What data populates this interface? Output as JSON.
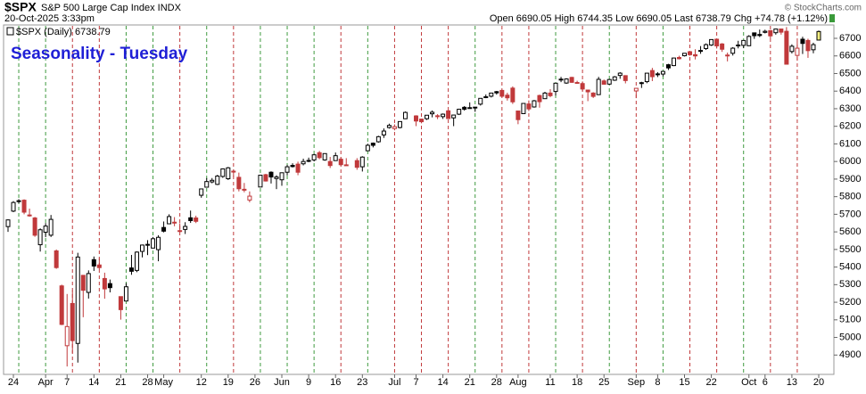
{
  "header": {
    "symbol": "$SPX",
    "name": "S&P 500 Large Cap Index INDX",
    "timestamp": "20-Oct-2025 3:33pm",
    "quote": "Open 6690.05 High 6744.35 Low 6690.05 Last 6738.79 Chg +74.78 (+1.12%)",
    "credit": "© StockCharts.com"
  },
  "chart_data": {
    "type": "candlestick",
    "title": "Seasonality - Tuesday",
    "legend": "$SPX (Daily) 6738.79",
    "categories": [
      null,
      "24",
      null,
      null,
      null,
      null,
      null,
      "Apr",
      null,
      null,
      null,
      "7",
      null,
      null,
      null,
      null,
      "14",
      null,
      null,
      null,
      null,
      "21",
      null,
      null,
      null,
      null,
      "28",
      null,
      null,
      "May",
      null,
      null,
      null,
      null,
      null,
      null,
      "12",
      null,
      null,
      null,
      null,
      "19",
      null,
      null,
      null,
      null,
      "26",
      null,
      null,
      null,
      null,
      "Jun",
      null,
      null,
      null,
      null,
      "9",
      null,
      null,
      null,
      null,
      "16",
      null,
      null,
      null,
      null,
      "23",
      null,
      null,
      null,
      null,
      null,
      "Jul",
      null,
      null,
      null,
      "7",
      null,
      null,
      null,
      null,
      "14",
      null,
      null,
      null,
      null,
      "21",
      null,
      null,
      null,
      null,
      "28",
      null,
      null,
      null,
      "Aug",
      null,
      null,
      null,
      null,
      null,
      "11",
      null,
      null,
      null,
      null,
      "18",
      null,
      null,
      null,
      null,
      "25",
      null,
      null,
      null,
      null,
      null,
      "Sep",
      null,
      null,
      null,
      "8",
      null,
      null,
      null,
      null,
      "15",
      null,
      null,
      null,
      null,
      "22",
      null,
      null,
      null,
      null,
      null,
      null,
      "Oct",
      null,
      null,
      "6",
      null,
      null,
      null,
      null,
      "13",
      null,
      null,
      null,
      null,
      "20"
    ],
    "series": [
      {
        "name": "$SPX",
        "ohlc": [
          [
            5630,
            5670,
            5600,
            5668
          ],
          [
            5718,
            5775,
            5712,
            5767
          ],
          [
            5772,
            5786,
            5762,
            5777
          ],
          [
            5780,
            5785,
            5700,
            5712
          ],
          [
            5696,
            5732,
            5686,
            5693
          ],
          [
            5679,
            5685,
            5572,
            5581
          ],
          [
            5527,
            5620,
            5488,
            5612
          ],
          [
            5598,
            5650,
            5570,
            5633
          ],
          [
            5581,
            5696,
            5571,
            5671
          ],
          [
            5492,
            5500,
            5390,
            5397
          ],
          [
            5293,
            5300,
            5070,
            5074
          ],
          [
            4953,
            5247,
            4835,
            5062
          ],
          [
            5193,
            5267,
            4910,
            4982
          ],
          [
            4966,
            5481,
            4857,
            5457
          ],
          [
            5353,
            5353,
            5115,
            5268
          ],
          [
            5256,
            5381,
            5221,
            5363
          ],
          [
            5442,
            5460,
            5378,
            5406
          ],
          [
            5412,
            5450,
            5386,
            5397
          ],
          [
            5335,
            5368,
            5220,
            5276
          ],
          [
            5306,
            5329,
            5256,
            5283
          ],
          null,
          [
            5232,
            5232,
            5101,
            5158
          ],
          [
            5207,
            5309,
            5207,
            5288
          ],
          [
            5395,
            5469,
            5356,
            5376
          ],
          [
            5381,
            5489,
            5371,
            5485
          ],
          [
            5489,
            5528,
            5455,
            5525
          ],
          [
            5529,
            5553,
            5468,
            5529
          ],
          [
            5508,
            5571,
            5506,
            5561
          ],
          [
            5499,
            5581,
            5433,
            5569
          ],
          [
            5625,
            5659,
            5597,
            5604
          ],
          [
            5646,
            5700,
            5644,
            5687
          ],
          [
            5655,
            5684,
            5632,
            5650
          ],
          [
            5605,
            5649,
            5597,
            5607
          ],
          [
            5614,
            5655,
            5588,
            5631
          ],
          [
            5680,
            5721,
            5651,
            5664
          ],
          [
            5679,
            5692,
            5650,
            5660
          ],
          [
            5808,
            5844,
            5794,
            5844
          ],
          [
            5854,
            5906,
            5853,
            5886
          ],
          [
            5884,
            5906,
            5876,
            5893
          ],
          [
            5870,
            5924,
            5866,
            5917
          ],
          [
            5915,
            5959,
            5907,
            5958
          ],
          [
            5902,
            5969,
            5895,
            5964
          ],
          [
            5945,
            5954,
            5914,
            5941
          ],
          [
            5910,
            5937,
            5830,
            5845
          ],
          [
            5842,
            5878,
            5825,
            5842
          ],
          [
            5781,
            5830,
            5768,
            5803
          ],
          null,
          [
            5855,
            5924,
            5855,
            5922
          ],
          [
            5925,
            5930,
            5886,
            5889
          ],
          [
            5939,
            5944,
            5875,
            5912
          ],
          [
            5903,
            5922,
            5843,
            5912
          ],
          [
            5896,
            5937,
            5862,
            5936
          ],
          [
            5939,
            5981,
            5921,
            5970
          ],
          [
            5978,
            5990,
            5966,
            5971
          ],
          [
            5985,
            5999,
            5922,
            5939
          ],
          [
            5987,
            6016,
            5978,
            6000
          ],
          [
            6005,
            6022,
            5996,
            6006
          ],
          [
            6009,
            6043,
            6000,
            6038
          ],
          [
            6050,
            6060,
            6013,
            6022
          ],
          [
            6009,
            6046,
            6004,
            6045
          ],
          [
            6000,
            6026,
            5963,
            5977
          ],
          [
            6005,
            6051,
            6004,
            6033
          ],
          [
            6013,
            6024,
            5974,
            5982
          ],
          [
            5980,
            6019,
            5976,
            5981
          ],
          null,
          [
            6005,
            6019,
            5953,
            5967
          ],
          [
            5970,
            6030,
            5943,
            6025
          ],
          [
            6061,
            6101,
            6060,
            6092
          ],
          [
            6104,
            6108,
            6080,
            6092
          ],
          [
            6112,
            6146,
            6107,
            6141
          ],
          [
            6151,
            6188,
            6134,
            6173
          ],
          [
            6193,
            6215,
            6187,
            6205
          ],
          [
            6187,
            6211,
            6177,
            6198
          ],
          [
            6193,
            6227,
            6188,
            6227
          ],
          [
            6243,
            6284,
            6241,
            6279
          ],
          null,
          [
            6259,
            6263,
            6201,
            6230
          ],
          [
            6241,
            6242,
            6217,
            6226
          ],
          [
            6243,
            6264,
            6236,
            6263
          ],
          [
            6271,
            6290,
            6251,
            6280
          ],
          [
            6256,
            6269,
            6241,
            6260
          ],
          [
            6255,
            6273,
            6242,
            6269
          ],
          [
            6288,
            6291,
            6244,
            6244
          ],
          [
            6248,
            6265,
            6201,
            6264
          ],
          [
            6269,
            6300,
            6264,
            6297
          ],
          [
            6308,
            6315,
            6289,
            6297
          ],
          [
            6305,
            6336,
            6303,
            6306
          ],
          [
            6307,
            6310,
            6282,
            6309
          ],
          [
            6326,
            6359,
            6318,
            6359
          ],
          [
            6368,
            6381,
            6360,
            6363
          ],
          [
            6371,
            6390,
            6364,
            6389
          ],
          [
            6397,
            6401,
            6380,
            6390
          ],
          [
            6404,
            6409,
            6365,
            6371
          ],
          [
            6377,
            6391,
            6346,
            6362
          ],
          [
            6417,
            6427,
            6327,
            6339
          ],
          [
            6287,
            6288,
            6212,
            6238
          ],
          [
            6272,
            6330,
            6272,
            6330
          ],
          [
            6327,
            6347,
            6287,
            6299
          ],
          [
            6310,
            6350,
            6306,
            6345
          ],
          [
            6375,
            6380,
            6306,
            6340
          ],
          [
            6357,
            6396,
            6357,
            6389
          ],
          [
            6389,
            6411,
            6365,
            6374
          ],
          [
            6398,
            6446,
            6375,
            6445
          ],
          [
            6468,
            6481,
            6451,
            6466
          ],
          [
            6446,
            6473,
            6441,
            6469
          ],
          [
            6478,
            6481,
            6447,
            6450
          ],
          [
            6446,
            6459,
            6443,
            6449
          ],
          [
            6443,
            6455,
            6400,
            6412
          ],
          [
            6406,
            6407,
            6343,
            6396
          ],
          [
            6389,
            6394,
            6361,
            6370
          ],
          [
            6380,
            6481,
            6378,
            6467
          ],
          [
            6458,
            6466,
            6438,
            6439
          ],
          [
            6440,
            6470,
            6436,
            6466
          ],
          [
            6462,
            6486,
            6458,
            6481
          ],
          [
            6489,
            6508,
            6470,
            6502
          ],
          [
            6488,
            6490,
            6444,
            6460
          ],
          null,
          [
            6401,
            6416,
            6360,
            6416
          ],
          [
            6443,
            6453,
            6418,
            6448
          ],
          [
            6454,
            6502,
            6445,
            6502
          ],
          [
            6517,
            6532,
            6457,
            6482
          ],
          [
            6498,
            6508,
            6480,
            6495
          ],
          [
            6497,
            6513,
            6484,
            6512
          ],
          [
            6550,
            6555,
            6520,
            6532
          ],
          [
            6545,
            6590,
            6542,
            6588
          ],
          [
            6591,
            6601,
            6580,
            6584
          ],
          [
            6601,
            6615,
            6597,
            6615
          ],
          [
            6624,
            6627,
            6601,
            6607
          ],
          [
            6607,
            6638,
            6580,
            6600
          ],
          [
            6627,
            6656,
            6612,
            6631
          ],
          [
            6642,
            6671,
            6634,
            6664
          ],
          [
            6662,
            6694,
            6657,
            6693
          ],
          [
            6695,
            6697,
            6642,
            6657
          ],
          [
            6668,
            6673,
            6623,
            6638
          ],
          [
            6605,
            6619,
            6569,
            6605
          ],
          [
            6615,
            6650,
            6602,
            6644
          ],
          [
            6662,
            6686,
            6643,
            6661
          ],
          [
            6660,
            6689,
            6644,
            6688
          ],
          [
            6658,
            6718,
            6656,
            6711
          ],
          [
            6731,
            6731,
            6697,
            6715
          ],
          [
            6722,
            6750,
            6707,
            6716
          ],
          [
            6734,
            6749,
            6728,
            6740
          ],
          [
            6744,
            6745,
            6700,
            6714
          ],
          [
            6732,
            6754,
            6721,
            6753
          ],
          [
            6753,
            6755,
            6721,
            6735
          ],
          [
            6740,
            6764,
            6552,
            6553
          ],
          [
            6625,
            6666,
            6614,
            6655
          ],
          [
            6603,
            6680,
            6574,
            6644
          ],
          [
            6695,
            6709,
            6611,
            6671
          ],
          [
            6688,
            6698,
            6589,
            6630
          ],
          [
            6635,
            6675,
            6615,
            6664
          ],
          [
            6690.05,
            6744.35,
            6690.05,
            6738.79
          ]
        ]
      }
    ],
    "ylim": [
      4790,
      6776
    ],
    "yticks": [
      4900,
      5000,
      5100,
      5200,
      5300,
      5400,
      5500,
      5600,
      5700,
      5800,
      5900,
      6000,
      6100,
      6200,
      6300,
      6400,
      6500,
      6600,
      6700
    ],
    "up_color": "#000000",
    "down_color": "#c0393b",
    "highlight_color": "#f2ee82",
    "tuesday_up_color": "#3f9a3f",
    "tuesday_down_color": "#c0393b",
    "title_color": "#1f1fd6"
  }
}
